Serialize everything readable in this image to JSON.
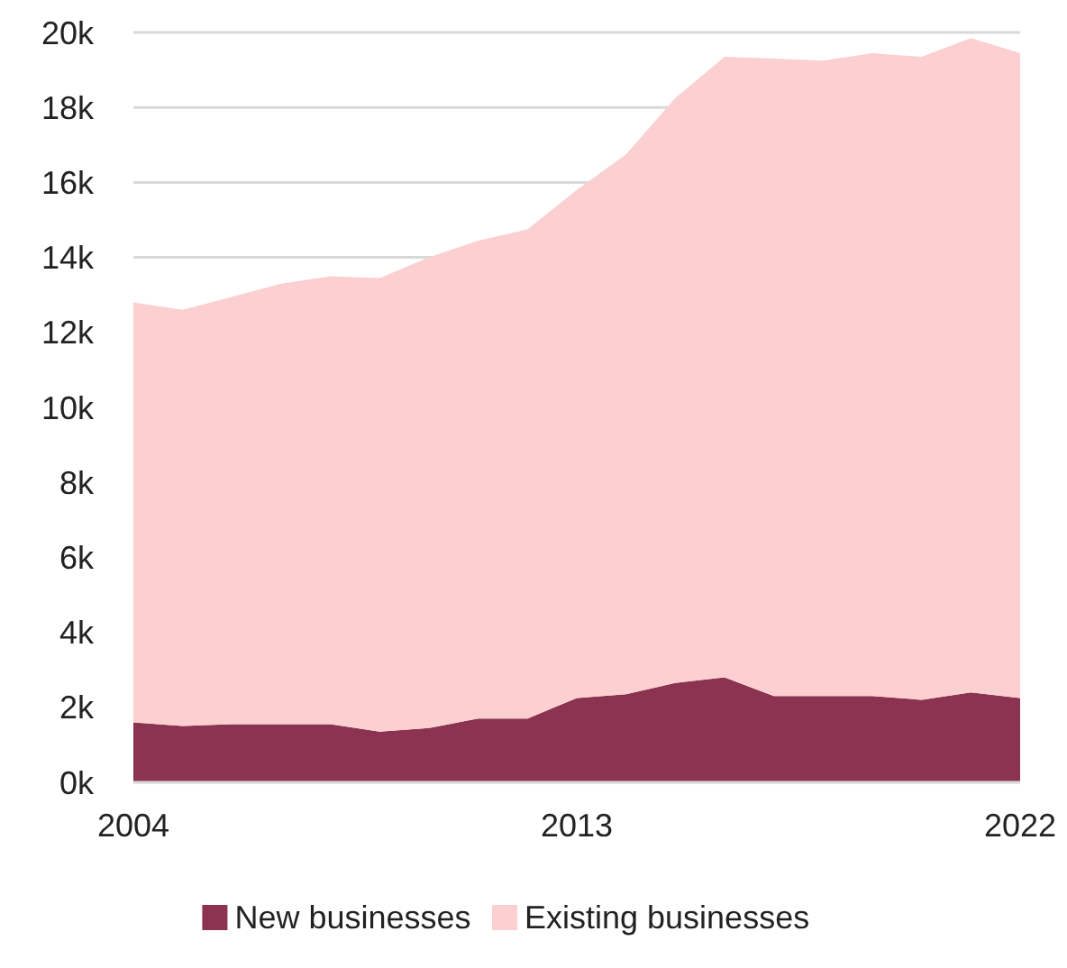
{
  "chart_data": {
    "type": "area",
    "stacked": true,
    "x": [
      2004,
      2005,
      2006,
      2007,
      2008,
      2009,
      2010,
      2011,
      2012,
      2013,
      2014,
      2015,
      2016,
      2017,
      2018,
      2019,
      2020,
      2021,
      2022
    ],
    "series": [
      {
        "name": "New businesses",
        "color": "#8b3350",
        "values": [
          1600,
          1500,
          1550,
          1550,
          1550,
          1350,
          1450,
          1700,
          1700,
          2250,
          2350,
          2650,
          2800,
          2300,
          2300,
          2300,
          2200,
          2400,
          2250
        ]
      },
      {
        "name": "Existing businesses",
        "color": "#fccfd1",
        "values": [
          11200,
          11100,
          11400,
          11750,
          11950,
          12100,
          12550,
          12750,
          13050,
          13550,
          14400,
          15600,
          16550,
          17000,
          16950,
          17150,
          17150,
          17450,
          17200
        ]
      }
    ],
    "xlim": [
      2004,
      2022
    ],
    "xticks": [
      2004,
      2013,
      2022
    ],
    "ylim": [
      0,
      20000
    ],
    "yticks": [
      {
        "value": 0,
        "label": "0k"
      },
      {
        "value": 2000,
        "label": "2k"
      },
      {
        "value": 4000,
        "label": "4k"
      },
      {
        "value": 6000,
        "label": "6k"
      },
      {
        "value": 8000,
        "label": "8k"
      },
      {
        "value": 10000,
        "label": "10k"
      },
      {
        "value": 12000,
        "label": "12k"
      },
      {
        "value": 14000,
        "label": "14k"
      },
      {
        "value": 16000,
        "label": "16k"
      },
      {
        "value": 18000,
        "label": "18k"
      },
      {
        "value": 20000,
        "label": "20k"
      }
    ],
    "grid": "y",
    "legend": "bottom"
  }
}
